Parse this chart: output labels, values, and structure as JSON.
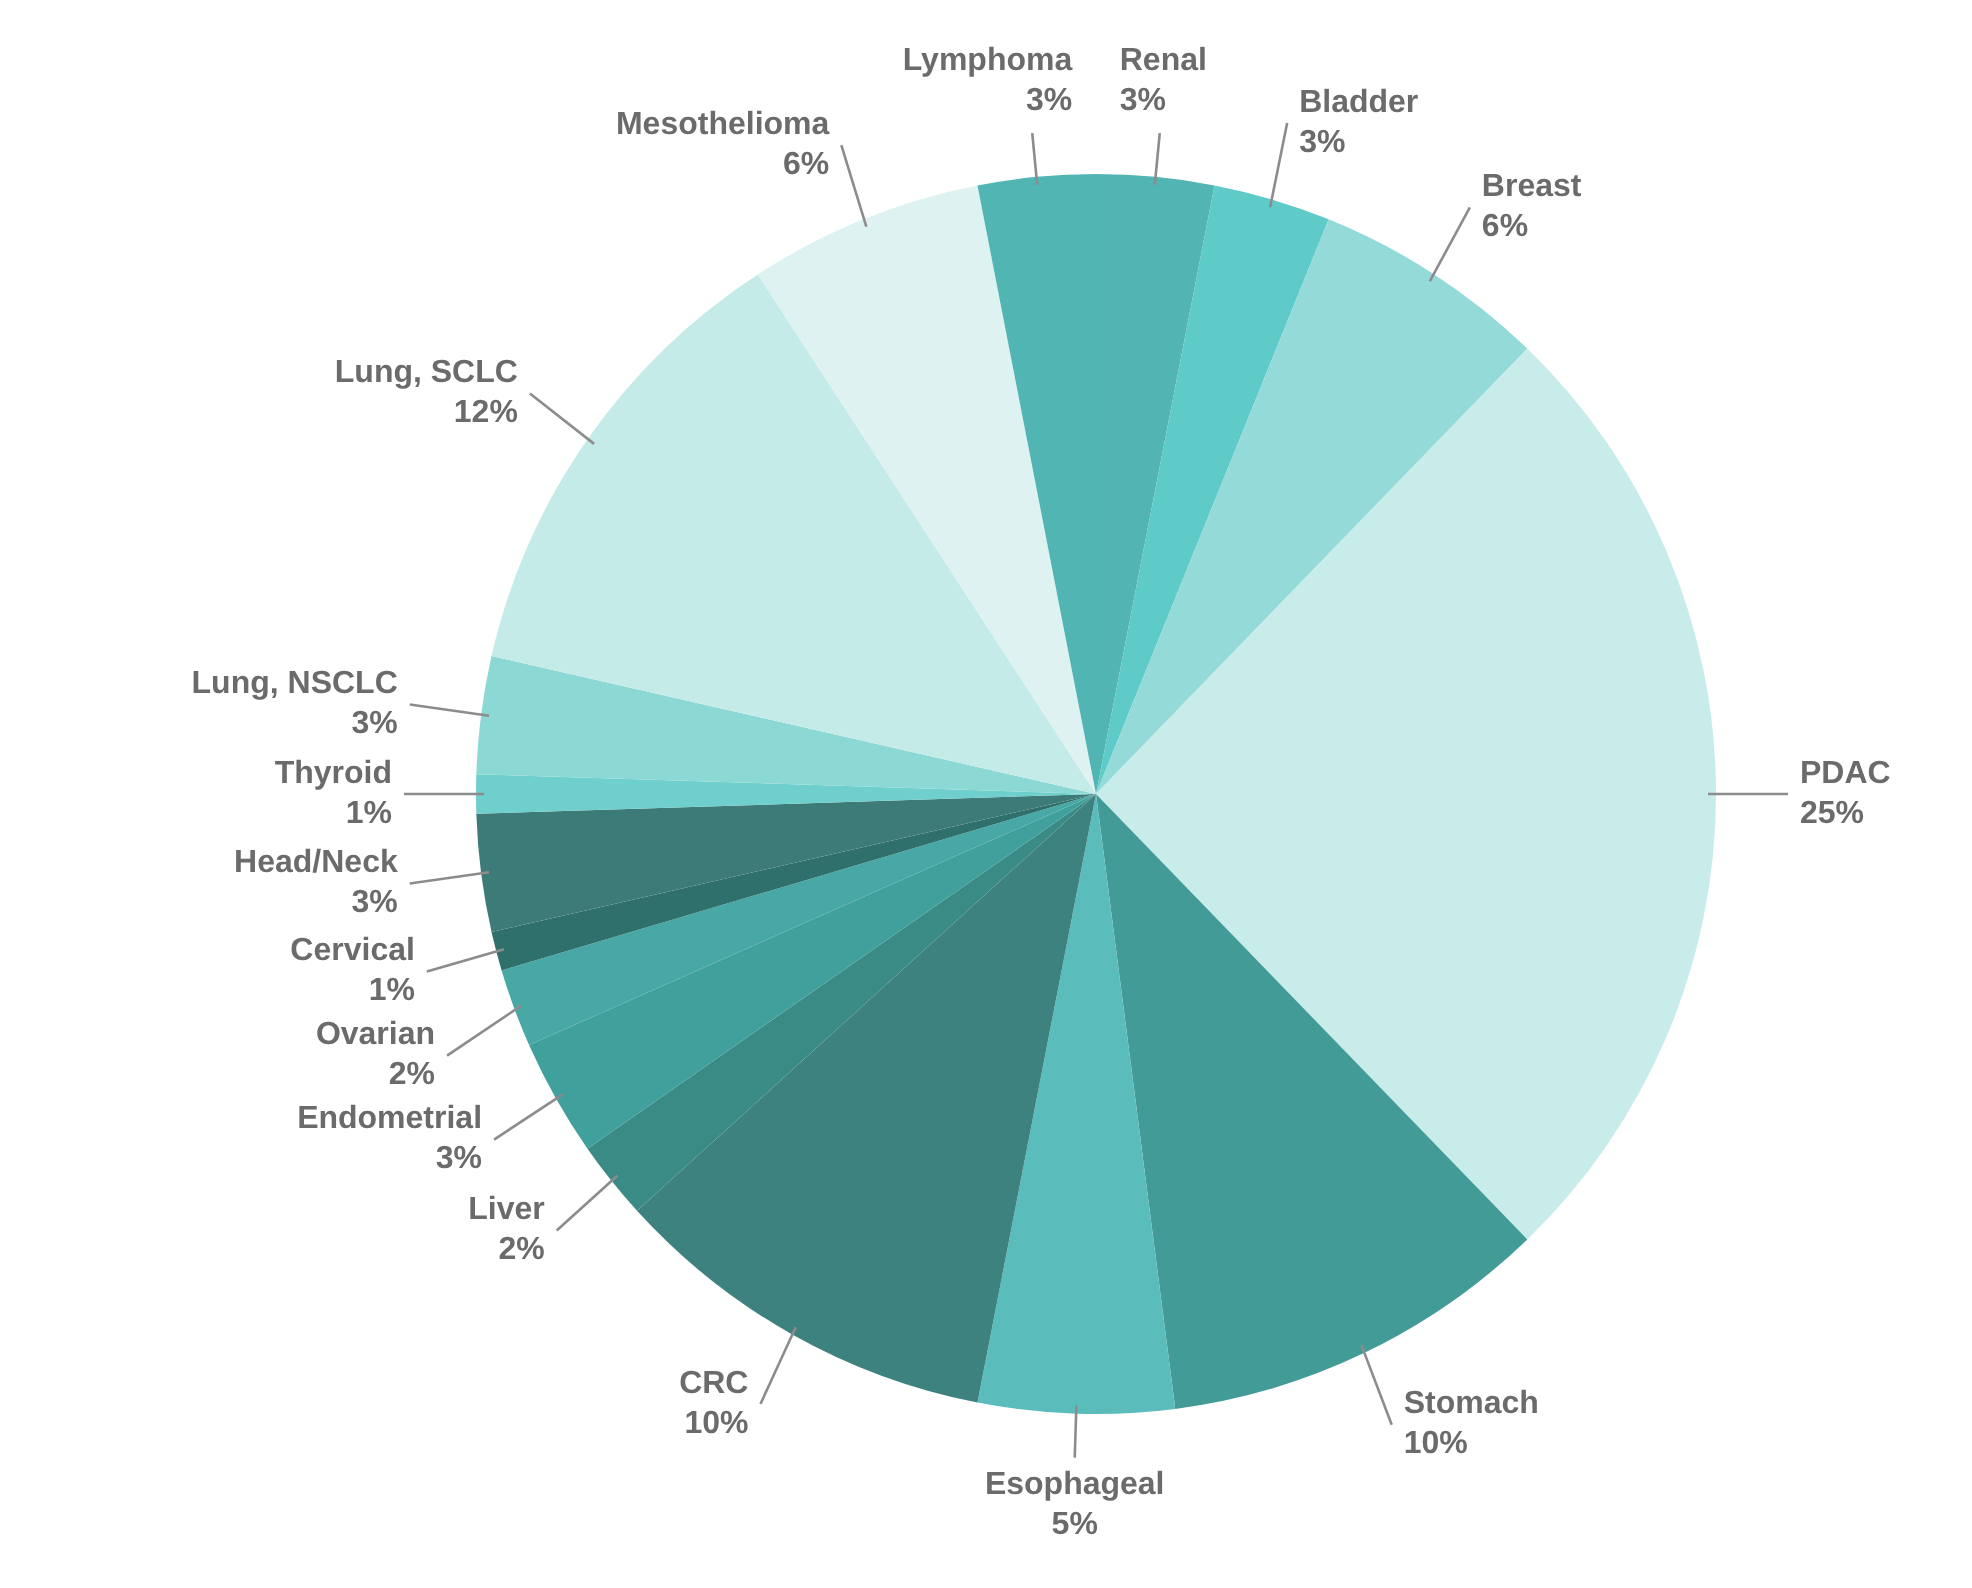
{
  "chart_data": {
    "type": "pie",
    "categories": [
      "Renal",
      "Bladder",
      "Breast",
      "PDAC",
      "Stomach",
      "Esophageal",
      "CRC",
      "Liver",
      "Endometrial",
      "Ovarian",
      "Cervical",
      "Head/Neck",
      "Thyroid",
      "Lung, NSCLC",
      "Lung, SCLC",
      "Mesothelioma",
      "Lymphoma"
    ],
    "values": [
      3,
      3,
      6,
      25,
      10,
      5,
      10,
      2,
      3,
      2,
      1,
      3,
      1,
      3,
      12,
      6,
      3
    ],
    "value_labels": [
      "3%",
      "3%",
      "6%",
      "25%",
      "10%",
      "5%",
      "10%",
      "2%",
      "3%",
      "2%",
      "1%",
      "3%",
      "1%",
      "3%",
      "12%",
      "6%",
      "3%"
    ],
    "colors": [
      "#52b5b3",
      "#5ecbc8",
      "#93dad8",
      "#c8ecea",
      "#439b98",
      "#5bbdbb",
      "#3d827f",
      "#3a8a86",
      "#40a09c",
      "#47a8a5",
      "#2f6f6c",
      "#3d7b79",
      "#6fcfcc",
      "#8cd8d5",
      "#c5ebe9",
      "#ddf2f1",
      "#51b6b3"
    ]
  }
}
